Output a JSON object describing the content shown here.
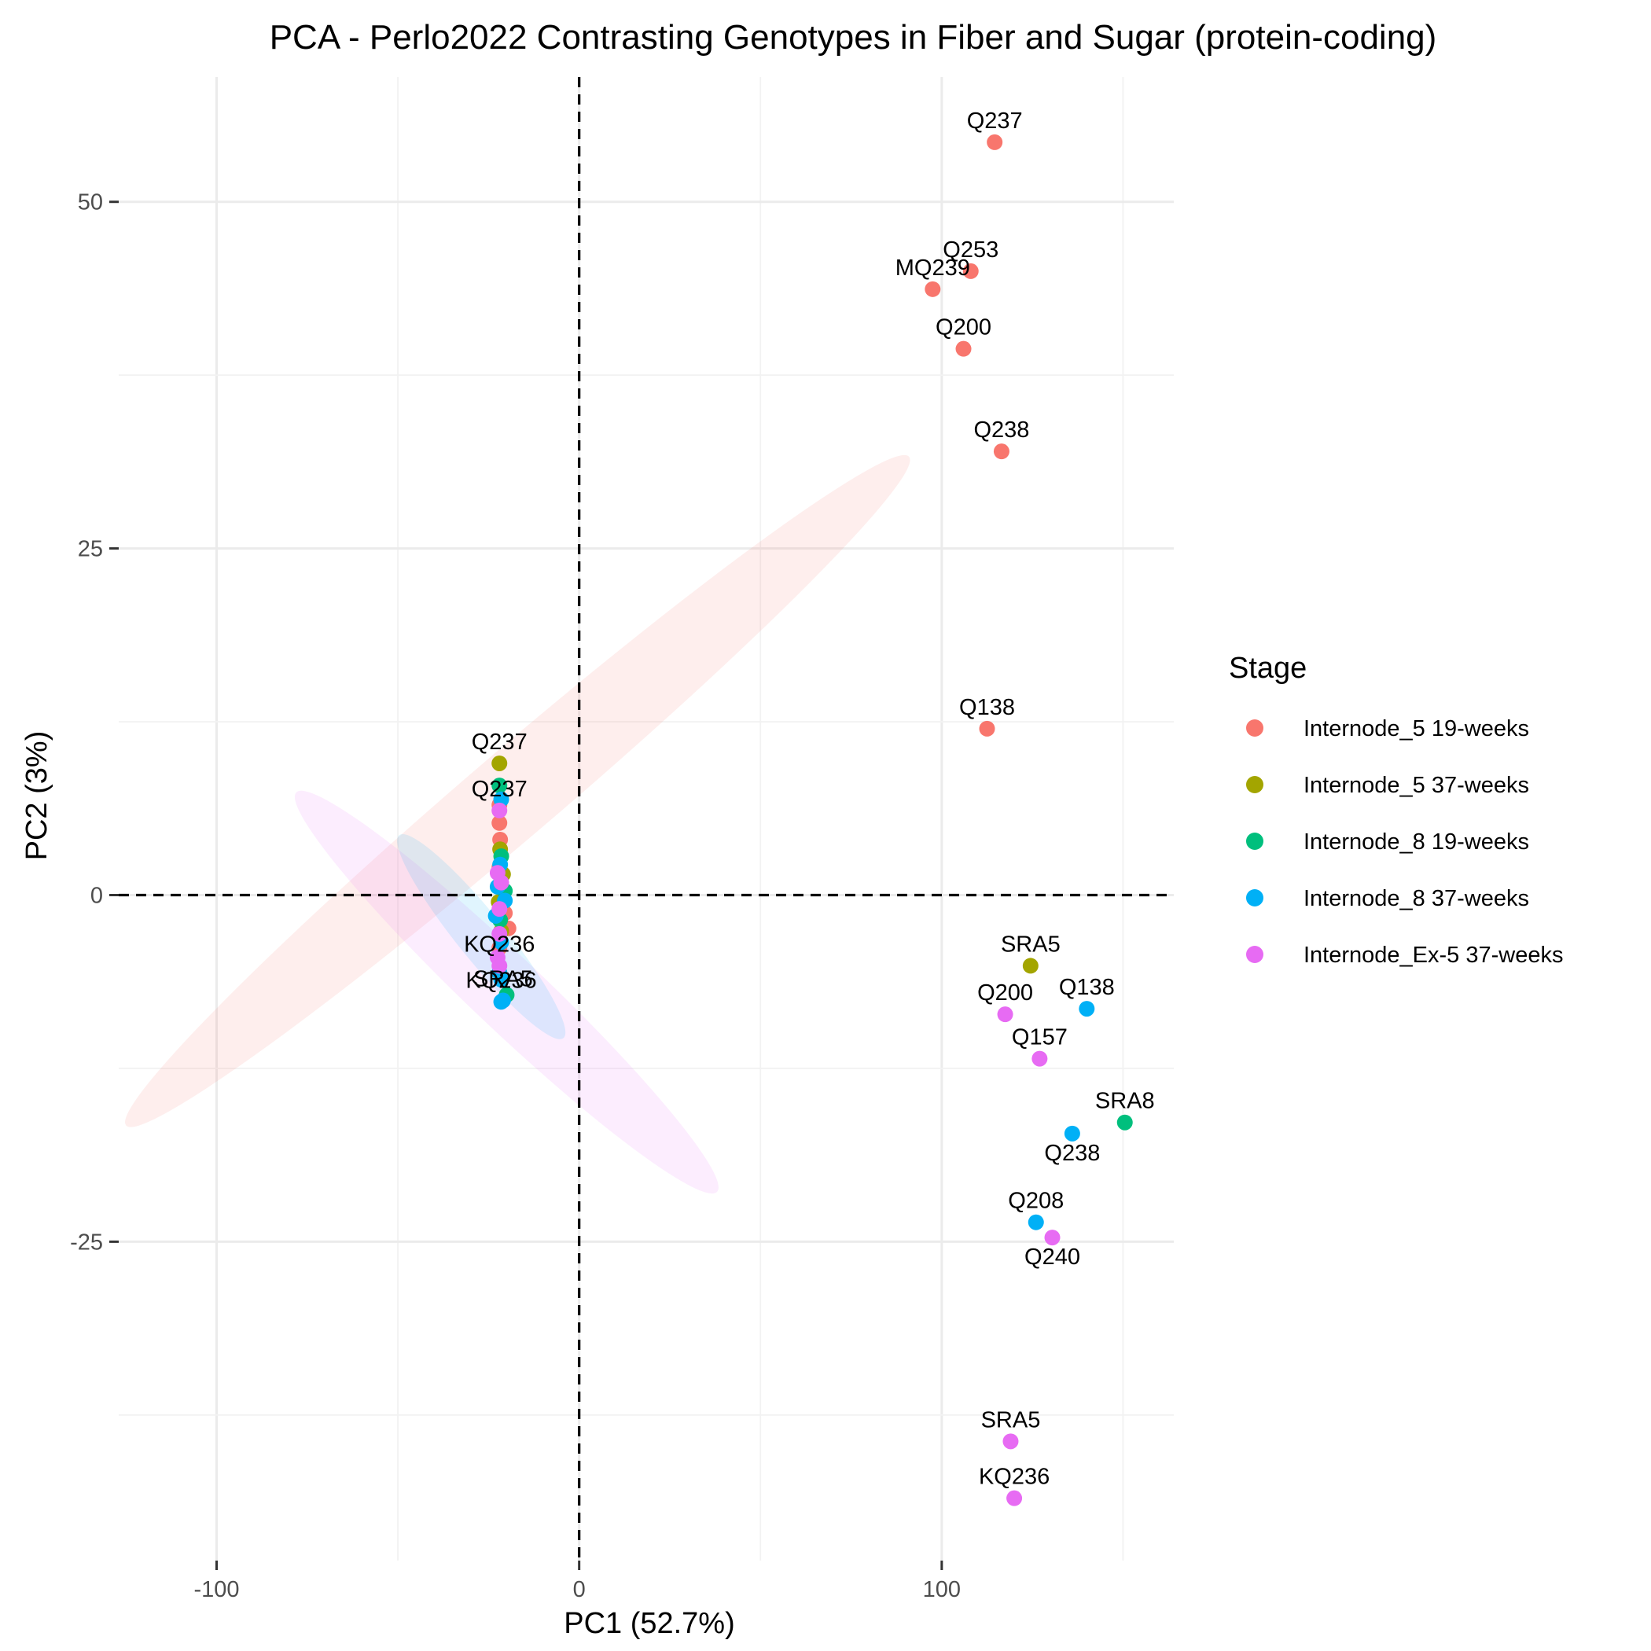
{
  "chart_data": {
    "type": "scatter",
    "title": "PCA - Perlo2022 Contrasting Genotypes in Fiber and Sugar (protein-coding)",
    "xlabel": "PC1 (52.7%)",
    "ylabel": "PC2 (3%)",
    "xlim": [
      -127,
      164
    ],
    "ylim": [
      -48,
      59
    ],
    "x_ticks": [
      -100,
      0,
      100
    ],
    "x_tick_labels": [
      "-100",
      "0",
      "100"
    ],
    "y_ticks": [
      -25,
      0,
      25,
      50
    ],
    "y_tick_labels": [
      "-25",
      "0",
      "25",
      "50"
    ],
    "reference_lines": {
      "x": 0,
      "y": 0,
      "style": "dashed"
    },
    "grid": true,
    "legend": {
      "title": "Stage",
      "position": "right"
    },
    "series": [
      {
        "name": "Internode_5 19-weeks",
        "color": "#F8766D",
        "points": [
          {
            "x": 114.6,
            "y": 54.3,
            "label": "Q237"
          },
          {
            "x": 108.0,
            "y": 45.0,
            "label": "Q253"
          },
          {
            "x": 97.5,
            "y": 43.7,
            "label": "MQ239"
          },
          {
            "x": 106.0,
            "y": 39.4,
            "label": "Q200"
          },
          {
            "x": 116.5,
            "y": 32.0,
            "label": "Q238"
          },
          {
            "x": 112.5,
            "y": 12.0,
            "label": "Q138"
          },
          {
            "x": -22.0,
            "y": 6.5,
            "label": ""
          },
          {
            "x": -22.0,
            "y": 5.2,
            "label": ""
          },
          {
            "x": -21.8,
            "y": 4.0,
            "label": ""
          },
          {
            "x": -22.0,
            "y": 2.0,
            "label": ""
          },
          {
            "x": -21.5,
            "y": 0.5,
            "label": ""
          },
          {
            "x": -20.5,
            "y": -1.3,
            "label": ""
          },
          {
            "x": -19.5,
            "y": -2.4,
            "label": ""
          },
          {
            "x": -22.0,
            "y": -3.8,
            "label": ""
          }
        ]
      },
      {
        "name": "Internode_5 37-weeks",
        "color": "#A3A500",
        "points": [
          {
            "x": -22.0,
            "y": 9.5,
            "label": "Q237"
          },
          {
            "x": 124.5,
            "y": -5.1,
            "label": "SRA5"
          },
          {
            "x": -21.8,
            "y": 3.3,
            "label": ""
          },
          {
            "x": -21.0,
            "y": 1.5,
            "label": ""
          },
          {
            "x": -22.2,
            "y": -0.5,
            "label": ""
          },
          {
            "x": -21.5,
            "y": -2.6,
            "label": ""
          }
        ]
      },
      {
        "name": "Internode_8 19-weeks",
        "color": "#00BF7D",
        "points": [
          {
            "x": -22.0,
            "y": 7.9,
            "label": ""
          },
          {
            "x": 150.5,
            "y": -16.4,
            "label": "SRA8"
          },
          {
            "x": -21.5,
            "y": 2.8,
            "label": ""
          },
          {
            "x": -20.5,
            "y": 0.3,
            "label": ""
          },
          {
            "x": -21.8,
            "y": -1.8,
            "label": ""
          },
          {
            "x": -20.0,
            "y": -7.2,
            "label": ""
          }
        ]
      },
      {
        "name": "Internode_8 37-weeks",
        "color": "#00B0F6",
        "points": [
          {
            "x": -21.5,
            "y": 6.9,
            "label": ""
          },
          {
            "x": 140.0,
            "y": -8.2,
            "label": "Q138"
          },
          {
            "x": 136.0,
            "y": -17.2,
            "label": "Q238"
          },
          {
            "x": 126.0,
            "y": -23.6,
            "label": "Q208"
          },
          {
            "x": -21.0,
            "y": -7.6,
            "label": "SRA5"
          },
          {
            "x": -21.5,
            "y": -7.7,
            "label": "KQ236"
          },
          {
            "x": -21.8,
            "y": 2.2,
            "label": ""
          },
          {
            "x": -22.5,
            "y": 0.6,
            "label": ""
          },
          {
            "x": -20.5,
            "y": -0.4,
            "label": ""
          },
          {
            "x": -23.0,
            "y": -1.5,
            "label": ""
          },
          {
            "x": -21.5,
            "y": -3.4,
            "label": ""
          },
          {
            "x": -22.0,
            "y": -5.6,
            "label": ""
          },
          {
            "x": -21.5,
            "y": -6.1,
            "label": ""
          }
        ]
      },
      {
        "name": "Internode_Ex-5 37-weeks",
        "color": "#E76BF3",
        "points": [
          {
            "x": -22.0,
            "y": 6.1,
            "label": "Q237"
          },
          {
            "x": 117.5,
            "y": -8.6,
            "label": "Q200"
          },
          {
            "x": 127.0,
            "y": -11.8,
            "label": "Q157"
          },
          {
            "x": 130.5,
            "y": -24.7,
            "label": "Q240"
          },
          {
            "x": 119.0,
            "y": -39.4,
            "label": "SRA5"
          },
          {
            "x": 120.0,
            "y": -43.5,
            "label": "KQ236"
          },
          {
            "x": -22.5,
            "y": 1.6,
            "label": ""
          },
          {
            "x": -21.5,
            "y": 0.9,
            "label": ""
          },
          {
            "x": -22.0,
            "y": -1.0,
            "label": ""
          },
          {
            "x": -22.0,
            "y": -2.8,
            "label": ""
          },
          {
            "x": -22.5,
            "y": -4.5,
            "label": ""
          },
          {
            "x": -22.0,
            "y": -5.1,
            "label": "KQ236"
          }
        ]
      }
    ],
    "ellipses": [
      {
        "series": "Internode_5 19-weeks",
        "center": [
          -17,
          7.5
        ],
        "rx": 142,
        "ry": 12,
        "angle_deg": 13.5
      },
      {
        "series": "Internode_Ex-5 37-weeks",
        "center": [
          -20,
          -7
        ],
        "rx": 80,
        "ry": 10,
        "angle_deg": -14.5
      },
      {
        "series": "Internode_8 37-weeks",
        "center": [
          -27,
          -3
        ],
        "rx": 36,
        "ry": 6.5,
        "angle_deg": -17
      }
    ]
  }
}
